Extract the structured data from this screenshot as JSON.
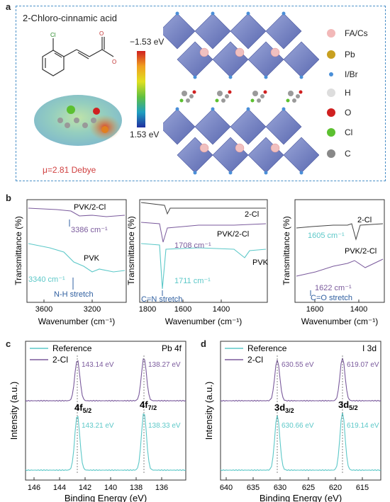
{
  "panel_a": {
    "label": "a",
    "molecule_title": "2-Chloro-cinnamic acid",
    "colorbar": {
      "top": "−1.53 eV",
      "bottom": "1.53 eV"
    },
    "dipole": "μ=2.81 Debye",
    "legend": [
      {
        "name": "FA/Cs",
        "color": "#f2b8b8"
      },
      {
        "name": "Pb",
        "color": "#c8a020"
      },
      {
        "name": "I/Br",
        "color": "#4a8fd8"
      },
      {
        "name": "H",
        "color": "#dddddd"
      },
      {
        "name": "O",
        "color": "#d02020"
      },
      {
        "name": "Cl",
        "color": "#5cc030"
      },
      {
        "name": "C",
        "color": "#888888"
      }
    ]
  },
  "panel_b": {
    "label": "b",
    "ylabel": "Transmittance (%)",
    "xlabel": "Wavenumber (cm⁻¹)",
    "sub1": {
      "ticks": [
        "3600",
        "3200"
      ],
      "top_label": "PVK/2-Cl",
      "top_peak": "3386 cm⁻¹",
      "bottom_label": "PVK",
      "bottom_peak": "3340 cm⁻¹",
      "annotation": "N-H stretch"
    },
    "sub2": {
      "ticks": [
        "1800",
        "1600",
        "1400"
      ],
      "label_2cl": "2-Cl",
      "label_pvk2cl": "PVK/2-Cl",
      "label_pvk": "PVK",
      "peak1": "1708 cm⁻¹",
      "peak2": "1711 cm⁻¹",
      "annotation": "C=N stretch"
    },
    "sub3": {
      "ticks": [
        "1600",
        "1400"
      ],
      "label_2cl": "2-Cl",
      "label_pvk2cl": "PVK/2-Cl",
      "peak1": "1605 cm⁻¹",
      "peak2": "1622 cm⁻¹",
      "annotation": "C=O stretch"
    }
  },
  "panel_c": {
    "label": "c",
    "title": "Pb 4f",
    "ylabel": "Intensity (a.u.)",
    "xlabel": "Binding Energy (eV)",
    "legend": [
      "Reference",
      "2-Cl"
    ],
    "ticks": [
      "146",
      "144",
      "142",
      "140",
      "138",
      "136"
    ],
    "peaks": {
      "cl_left": "143.14 eV",
      "cl_right": "138.27 eV",
      "ref_left": "143.21 eV",
      "ref_right": "138.33 eV",
      "name_left": "4f5/2",
      "name_right": "4f7/2"
    }
  },
  "panel_d": {
    "label": "d",
    "title": "I 3d",
    "ylabel": "Intensity (a.u.)",
    "xlabel": "Binding Energy (eV)",
    "legend": [
      "Reference",
      "2-Cl"
    ],
    "ticks": [
      "640",
      "635",
      "630",
      "625",
      "620",
      "615"
    ],
    "peaks": {
      "cl_left": "630.55 eV",
      "cl_right": "619.07 eV",
      "ref_left": "630.66 eV",
      "ref_right": "619.14 eV",
      "name_left": "3d3/2",
      "name_right": "3d5/2"
    }
  },
  "colors": {
    "teal": "#5cc8c8",
    "purple": "#7a5a9c",
    "blue_arrow": "#2f5fa0",
    "dashed_border": "#4a90c8"
  }
}
